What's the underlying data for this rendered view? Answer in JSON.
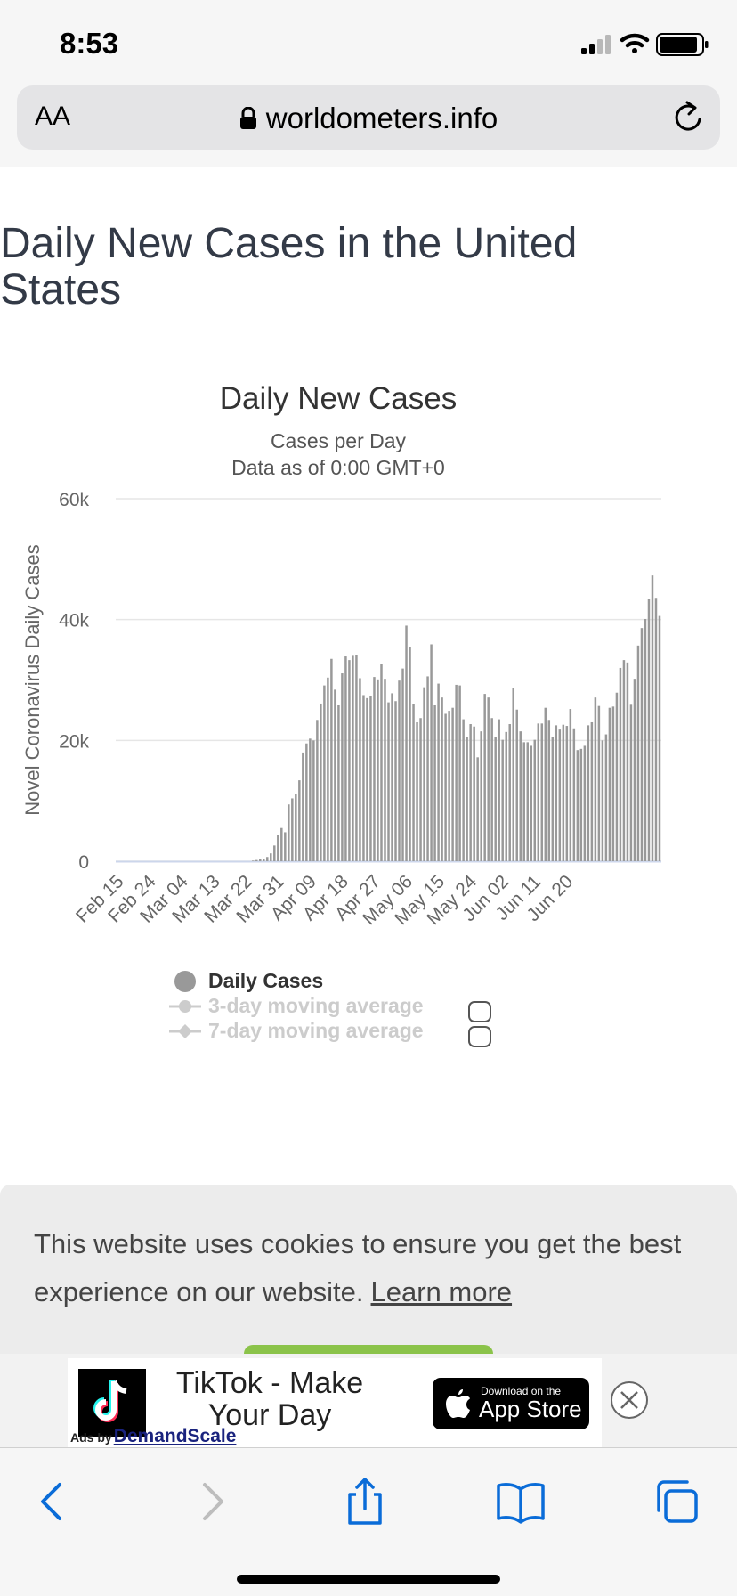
{
  "status_bar": {
    "time": "8:53"
  },
  "browser": {
    "text_size_label": "AA",
    "url": "worldometers.info"
  },
  "page": {
    "title": "Daily New Cases in the United States"
  },
  "chart_data": {
    "type": "bar",
    "title": "Daily New Cases",
    "subtitle": "Cases per Day",
    "subtitle2": "Data as of 0:00 GMT+0",
    "ylabel": "Novel Coronavirus Daily Cases",
    "ylim": [
      0,
      60000
    ],
    "y_ticks": [
      0,
      20000,
      40000,
      60000
    ],
    "y_tick_labels": [
      "0",
      "20k",
      "40k",
      "60k"
    ],
    "x_tick_labels": [
      "Feb 15",
      "Feb 24",
      "Mar 04",
      "Mar 13",
      "Mar 22",
      "Mar 31",
      "Apr 09",
      "Apr 18",
      "Apr 27",
      "May 06",
      "May 15",
      "May 24",
      "Jun 02",
      "Jun 11",
      "Jun 20"
    ],
    "start_date": "Feb 15",
    "bar_color": "#999999",
    "grid": true,
    "legend_placement": "bottom",
    "series": [
      {
        "name": "Daily Cases",
        "values": [
          0,
          0,
          0,
          0,
          0,
          0,
          0,
          0,
          0,
          0,
          0,
          0,
          0,
          0,
          0,
          0,
          0,
          0,
          0,
          0,
          0,
          0,
          0,
          0,
          0,
          0,
          0,
          0,
          0,
          0,
          0,
          0,
          0,
          0,
          0,
          0,
          0,
          0,
          100,
          200,
          300,
          300,
          700,
          1300,
          2600,
          4300,
          5500,
          4800,
          9400,
          10400,
          11200,
          13400,
          18000,
          19500,
          20300,
          20000,
          23400,
          26100,
          29100,
          30400,
          33500,
          28400,
          25800,
          31100,
          33900,
          33300,
          34000,
          34100,
          30300,
          27500,
          27000,
          27300,
          30500,
          30100,
          32600,
          30200,
          26300,
          27800,
          26500,
          29900,
          31900,
          39000,
          35400,
          26000,
          23000,
          23700,
          28800,
          30600,
          35900,
          25800,
          29400,
          27100,
          24400,
          24900,
          25400,
          29200,
          29100,
          23500,
          20500,
          22700,
          22300,
          17200,
          21500,
          27700,
          27100,
          23700,
          20600,
          23500,
          20100,
          21400,
          22700,
          28700,
          25100,
          21500,
          19700,
          19700,
          19100,
          20100,
          22800,
          22800,
          25400,
          23400,
          20500,
          22500,
          21800,
          22600,
          22400,
          25200,
          22000,
          18400,
          18600,
          19100,
          22500,
          23000,
          27100,
          25700,
          20000,
          21000,
          25400,
          25600,
          27900,
          32000,
          33300,
          32900,
          25900,
          30200,
          35700,
          38600,
          40100,
          43400,
          47300,
          43600,
          40600
        ]
      },
      {
        "name": "3-day moving average"
      },
      {
        "name": "7-day moving average"
      }
    ]
  },
  "cookie": {
    "message": "This website uses cookies to ensure you get the best experience on our website.",
    "link": "Learn more"
  },
  "ad": {
    "title": "TikTok - Make Your Day",
    "badge_small": "Download on the",
    "badge_big": "App Store",
    "ads_by": "Ads by",
    "brand": "DemandScale"
  },
  "icons": {
    "lock": "lock-icon",
    "reload": "reload-icon",
    "back": "back-icon",
    "forward": "forward-icon",
    "share": "share-icon",
    "bookmarks": "bookmarks-icon",
    "tabs": "tabs-icon"
  },
  "colors": {
    "accent": "#0a6cd8",
    "bar": "#999999",
    "cookie_button": "#8bc34a"
  }
}
